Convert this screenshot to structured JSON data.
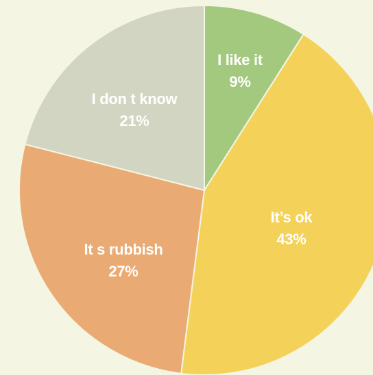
{
  "chart_data": {
    "type": "pie",
    "title": "",
    "start_angle_deg": 0,
    "direction": "clockwise",
    "slices": [
      {
        "label": "I like it",
        "value": 9,
        "value_label": "9%",
        "color": "#a3c97e"
      },
      {
        "label": "It’s ok",
        "value": 43,
        "value_label": "43%",
        "color": "#f4d25a"
      },
      {
        "label": "It s rubbish",
        "value": 27,
        "value_label": "27%",
        "color": "#eaaa74"
      },
      {
        "label": "I don t know",
        "value": 21,
        "value_label": "21%",
        "color": "#d3d5c3"
      }
    ]
  },
  "colors": {
    "background": "#f5f5e3",
    "slice_border": "#f5f5e3",
    "label_text": "#ffffff"
  }
}
